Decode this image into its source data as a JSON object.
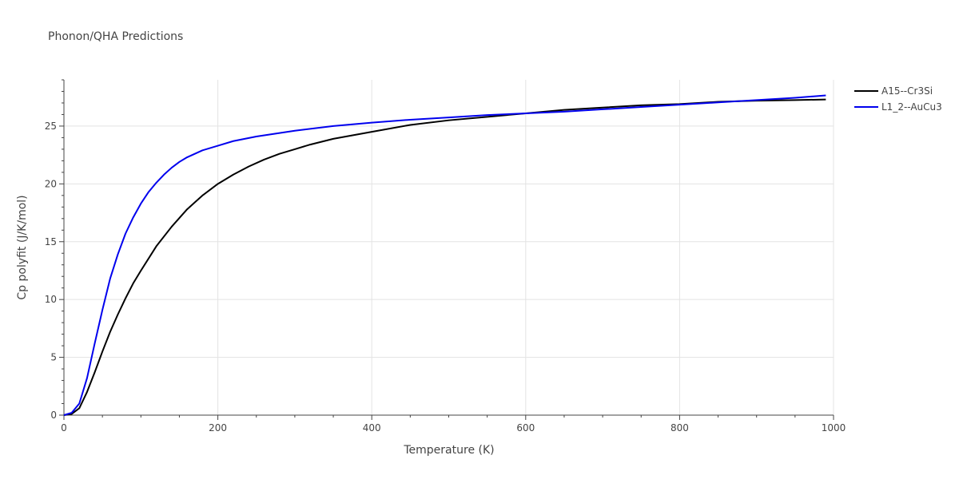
{
  "chart_data": {
    "type": "line",
    "title": "Phonon/QHA Predictions",
    "xlabel": "Temperature (K)",
    "ylabel": "Cp polyfit (J/K/mol)",
    "xlim": [
      0,
      1000
    ],
    "ylim": [
      0,
      29
    ],
    "xticks": [
      0,
      200,
      400,
      600,
      800,
      1000
    ],
    "xtick_labels": [
      "0",
      "200",
      "400",
      "600",
      "800",
      "1000"
    ],
    "yticks": [
      0,
      5,
      10,
      15,
      20,
      25
    ],
    "ytick_labels": [
      "0",
      "5",
      "10",
      "15",
      "20",
      "25"
    ],
    "grid": true,
    "legend_position": "top-right",
    "series": [
      {
        "name": "A15--Cr3Si",
        "color": "#000000",
        "x": [
          0,
          10,
          20,
          30,
          40,
          50,
          60,
          70,
          80,
          90,
          100,
          120,
          140,
          160,
          180,
          200,
          220,
          240,
          260,
          280,
          300,
          320,
          350,
          400,
          450,
          500,
          550,
          600,
          650,
          700,
          750,
          800,
          850,
          900,
          950,
          990
        ],
        "y": [
          0,
          0.1,
          0.6,
          2.0,
          3.7,
          5.5,
          7.2,
          8.7,
          10.1,
          11.4,
          12.5,
          14.6,
          16.3,
          17.8,
          19.0,
          20.0,
          20.8,
          21.5,
          22.1,
          22.6,
          23.0,
          23.4,
          23.9,
          24.5,
          25.1,
          25.5,
          25.8,
          26.1,
          26.4,
          26.6,
          26.8,
          26.9,
          27.1,
          27.2,
          27.25,
          27.3
        ]
      },
      {
        "name": "L1_2--AuCu3",
        "color": "#0000ee",
        "x": [
          0,
          10,
          20,
          30,
          40,
          50,
          60,
          70,
          80,
          90,
          100,
          110,
          120,
          130,
          140,
          150,
          160,
          180,
          200,
          220,
          250,
          300,
          350,
          400,
          450,
          500,
          550,
          600,
          650,
          700,
          750,
          800,
          850,
          900,
          950,
          990
        ],
        "y": [
          0,
          0.2,
          1.0,
          3.2,
          6.2,
          9.1,
          11.8,
          13.9,
          15.7,
          17.1,
          18.3,
          19.3,
          20.1,
          20.8,
          21.4,
          21.9,
          22.3,
          22.9,
          23.3,
          23.7,
          24.1,
          24.6,
          25.0,
          25.3,
          25.55,
          25.75,
          25.95,
          26.1,
          26.25,
          26.45,
          26.65,
          26.85,
          27.05,
          27.25,
          27.45,
          27.65
        ]
      }
    ]
  }
}
